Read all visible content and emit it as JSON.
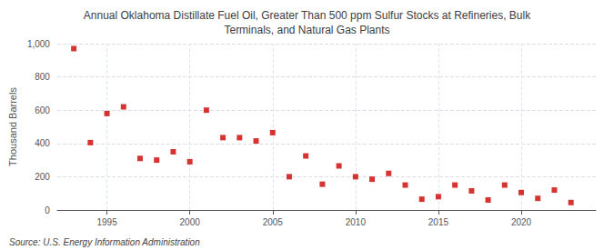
{
  "chart_data": {
    "type": "scatter",
    "title": "Annual Oklahoma Distillate Fuel Oil, Greater Than 500 ppm Sulfur Stocks at Refineries, Bulk\nTerminals, and Natural Gas Plants",
    "ylabel": "Thousand Barrels",
    "annotation": "Source: U.S. Energy Information Administration",
    "x": [
      1993,
      1994,
      1995,
      1996,
      1997,
      1998,
      1999,
      2000,
      2001,
      2002,
      2003,
      2004,
      2005,
      2006,
      2007,
      2008,
      2009,
      2010,
      2011,
      2012,
      2013,
      2014,
      2015,
      2016,
      2017,
      2018,
      2019,
      2020,
      2021,
      2022,
      2023
    ],
    "values": [
      970,
      405,
      580,
      620,
      310,
      300,
      350,
      290,
      600,
      435,
      435,
      415,
      465,
      200,
      325,
      155,
      265,
      200,
      185,
      220,
      150,
      65,
      80,
      150,
      115,
      60,
      150,
      105,
      70,
      120,
      45
    ],
    "color": "#cc0000",
    "marker": "square",
    "xlim": [
      1992,
      2024.5
    ],
    "xticks": [
      1995,
      2000,
      2005,
      2010,
      2015,
      2020
    ],
    "ylim": [
      0,
      1000
    ],
    "yticks": [
      0,
      200,
      400,
      600,
      800,
      {
        "value": 1000,
        "label": "1,000"
      }
    ],
    "grid": true
  }
}
